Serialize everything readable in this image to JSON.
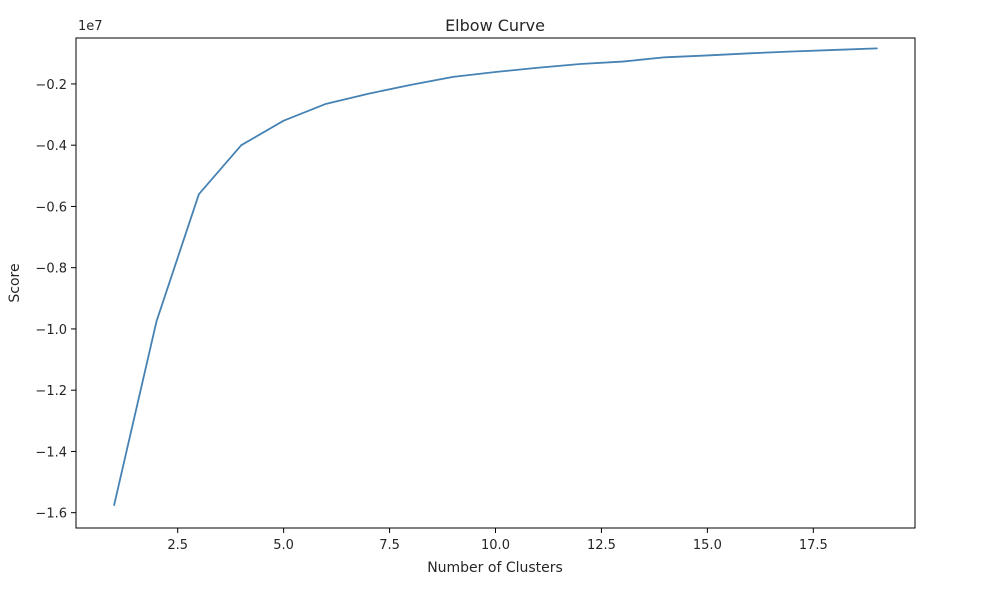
{
  "chart_data": {
    "type": "line",
    "title": "Elbow Curve",
    "xlabel": "Number of Clusters",
    "ylabel": "Score",
    "y_offset_label": "1e7",
    "xlim": [
      0.1,
      19.9
    ],
    "ylim": [
      -1.65,
      -0.05
    ],
    "grid": false,
    "legend": "none",
    "x_ticks": [
      2.5,
      5.0,
      7.5,
      10.0,
      12.5,
      15.0,
      17.5
    ],
    "x_tick_labels": [
      "2.5",
      "5.0",
      "7.5",
      "10.0",
      "12.5",
      "15.0",
      "17.5"
    ],
    "y_ticks": [
      -1.6,
      -1.4,
      -1.2,
      -1.0,
      -0.8,
      -0.6,
      -0.4,
      -0.2
    ],
    "y_tick_labels": [
      "−1.6",
      "−1.4",
      "−1.2",
      "−1.0",
      "−0.8",
      "−0.6",
      "−0.4",
      "−0.2"
    ],
    "series": [
      {
        "color": "#4682b4",
        "x": [
          1,
          2,
          3,
          4,
          5,
          6,
          7,
          8,
          9,
          10,
          11,
          12,
          13,
          14,
          15,
          16,
          17,
          18,
          19
        ],
        "y": [
          -1.575,
          -0.975,
          -0.56,
          -0.4,
          -0.32,
          -0.265,
          -0.232,
          -0.203,
          -0.177,
          -0.161,
          -0.147,
          -0.135,
          -0.127,
          -0.113,
          -0.107,
          -0.1,
          -0.094,
          -0.089,
          -0.084
        ]
      }
    ]
  }
}
